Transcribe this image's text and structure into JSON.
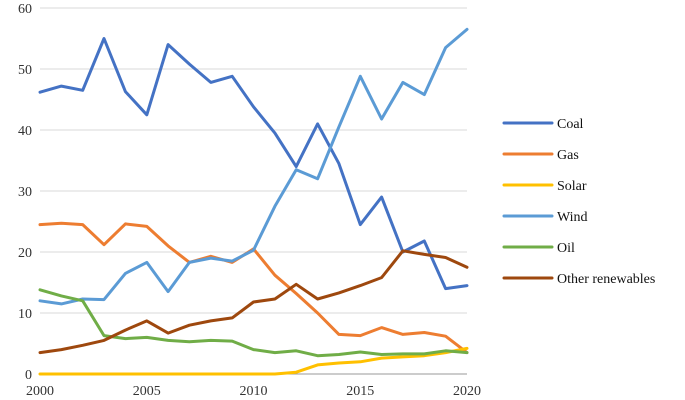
{
  "chart_data": {
    "type": "line",
    "title": "",
    "xlabel": "",
    "ylabel": "",
    "x": [
      2000,
      2001,
      2002,
      2003,
      2004,
      2005,
      2006,
      2007,
      2008,
      2009,
      2010,
      2011,
      2012,
      2013,
      2014,
      2015,
      2016,
      2017,
      2018,
      2019,
      2020
    ],
    "xlim": [
      2000,
      2020
    ],
    "ylim": [
      0,
      60
    ],
    "x_ticks": [
      2000,
      2005,
      2010,
      2015,
      2020
    ],
    "y_ticks": [
      0,
      10,
      20,
      30,
      40,
      50,
      60
    ],
    "grid": true,
    "legend_position": "right",
    "series": [
      {
        "name": "Coal",
        "color": "#4472C4",
        "values": [
          46.2,
          47.2,
          46.5,
          55.0,
          46.3,
          42.5,
          54.0,
          50.8,
          47.8,
          48.8,
          43.8,
          39.5,
          34.0,
          41.0,
          34.5,
          24.5,
          29.0,
          20.0,
          21.8,
          14.0,
          14.5
        ]
      },
      {
        "name": "Gas",
        "color": "#ED7D31",
        "values": [
          24.5,
          24.7,
          24.5,
          21.2,
          24.6,
          24.2,
          21.0,
          18.3,
          19.3,
          18.3,
          20.5,
          16.2,
          13.2,
          10.0,
          6.5,
          6.3,
          7.6,
          6.5,
          6.8,
          6.2,
          3.5
        ]
      },
      {
        "name": "Solar",
        "color": "#FFC000",
        "values": [
          0,
          0,
          0,
          0,
          0,
          0,
          0,
          0,
          0,
          0,
          0,
          0,
          0.3,
          1.5,
          1.8,
          2.0,
          2.6,
          2.8,
          3.0,
          3.5,
          4.2
        ]
      },
      {
        "name": "Wind",
        "color": "#5B9BD5",
        "values": [
          12.0,
          11.5,
          12.3,
          12.2,
          16.5,
          18.3,
          13.5,
          18.3,
          19.0,
          18.5,
          20.3,
          27.5,
          33.5,
          32.0,
          40.5,
          48.8,
          41.8,
          47.8,
          45.8,
          53.5,
          56.5
        ]
      },
      {
        "name": "Oil",
        "color": "#70AD47",
        "values": [
          13.8,
          12.8,
          12.0,
          6.3,
          5.8,
          6.0,
          5.5,
          5.3,
          5.5,
          5.4,
          4.0,
          3.5,
          3.8,
          3.0,
          3.2,
          3.6,
          3.2,
          3.3,
          3.3,
          3.8,
          3.5
        ]
      },
      {
        "name": "Other renewables",
        "color": "#9E480E",
        "values": [
          3.5,
          4.0,
          4.7,
          5.5,
          7.2,
          8.7,
          6.7,
          8.0,
          8.7,
          9.2,
          11.8,
          12.3,
          14.7,
          12.3,
          13.3,
          14.5,
          15.8,
          20.2,
          19.6,
          19.1,
          17.5
        ]
      }
    ]
  }
}
